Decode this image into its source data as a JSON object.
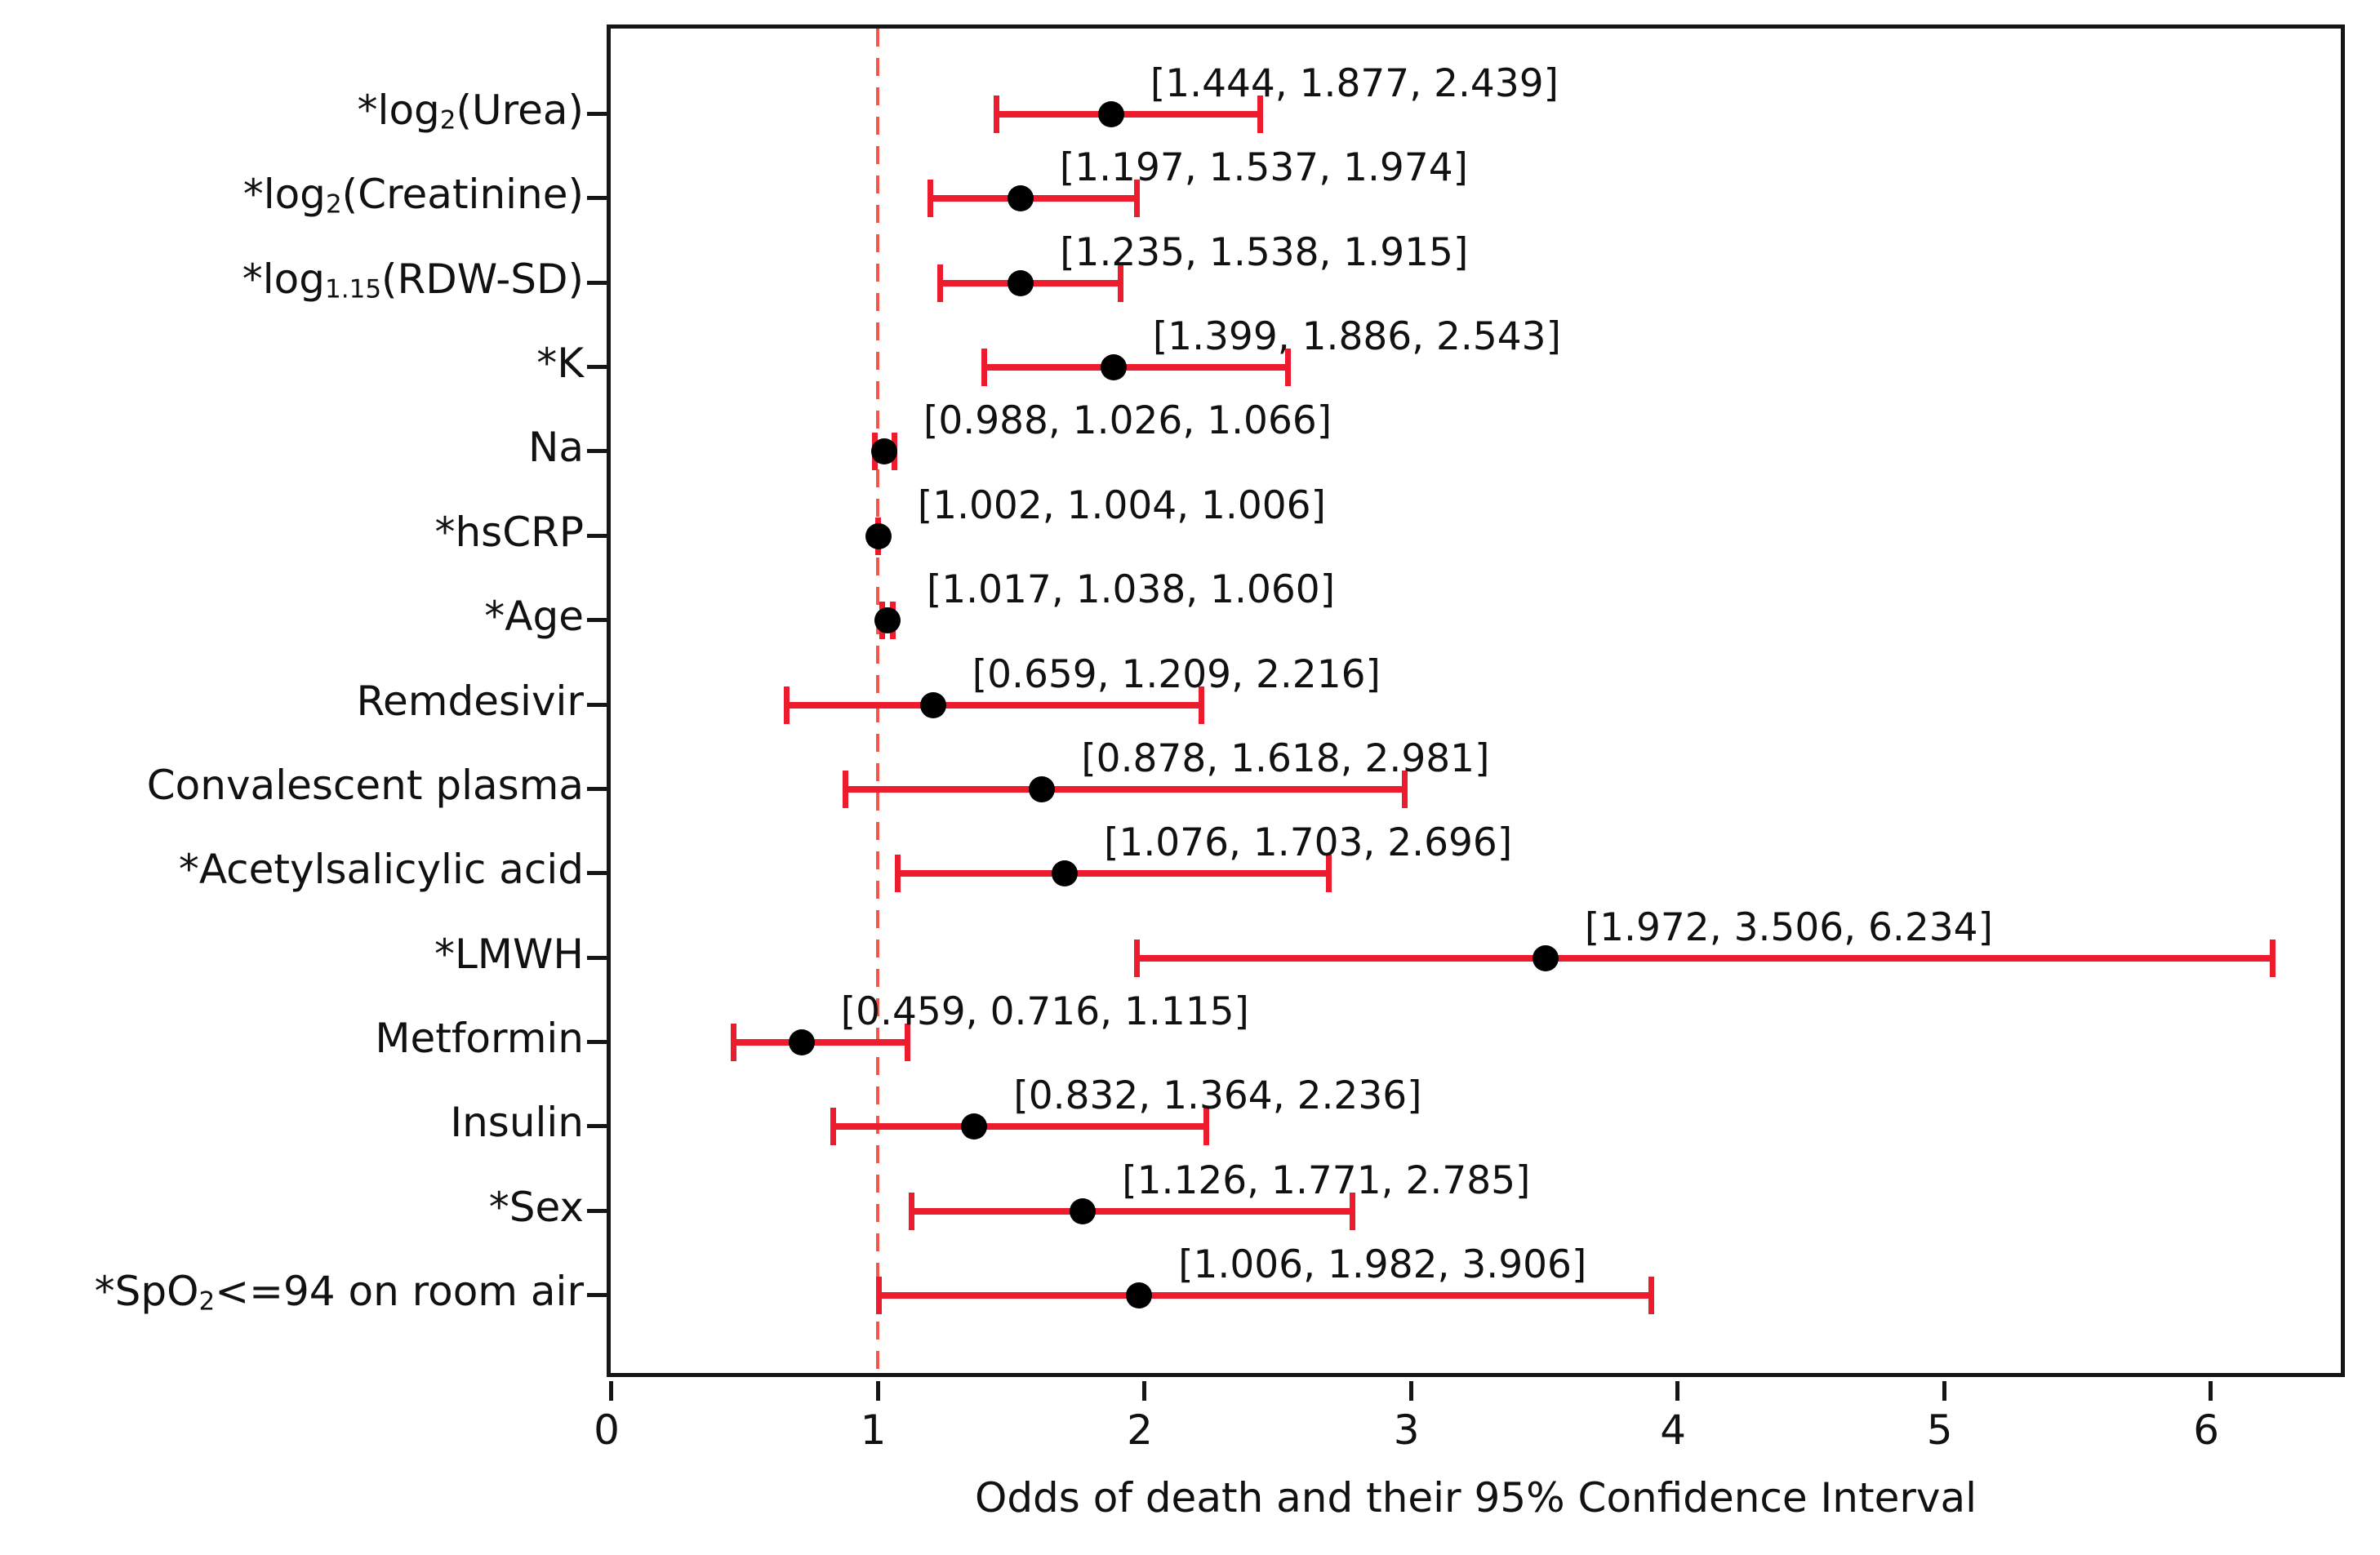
{
  "chart_data": {
    "type": "scatter",
    "subtype": "forest-plot-odds-ratios",
    "title": "",
    "xlabel": "Odds of death and their 95% Confidence Interval",
    "ylabel": "",
    "x_tick_labels": [
      "0",
      "1",
      "2",
      "3",
      "4",
      "5",
      "6"
    ],
    "x_ticks": [
      0,
      1,
      2,
      3,
      4,
      5,
      6
    ],
    "xlim": [
      0,
      6.52
    ],
    "reference_line_x": 1,
    "grid": "off",
    "legend": "none",
    "colors": {
      "error_bar": "#ec1c2e",
      "reference_line": "#f4564e",
      "marker": "#000000",
      "axis": "#161616",
      "text": "#111111"
    },
    "rows": [
      {
        "label_plain": "*log2(Urea)",
        "label_segments": [
          {
            "t": "*log"
          },
          {
            "t": "2",
            "s": 1
          },
          {
            "t": "(Urea)"
          }
        ],
        "low": 1.444,
        "mid": 1.877,
        "high": 2.439,
        "annotation": "[1.444, 1.877, 2.439]"
      },
      {
        "label_plain": "*log2(Creatinine)",
        "label_segments": [
          {
            "t": "*log"
          },
          {
            "t": "2",
            "s": 1
          },
          {
            "t": "(Creatinine)"
          }
        ],
        "low": 1.197,
        "mid": 1.537,
        "high": 1.974,
        "annotation": "[1.197, 1.537, 1.974]"
      },
      {
        "label_plain": "*log1.15(RDW-SD)",
        "label_segments": [
          {
            "t": "*log"
          },
          {
            "t": "1.15",
            "s": 1
          },
          {
            "t": "(RDW-SD)"
          }
        ],
        "low": 1.235,
        "mid": 1.538,
        "high": 1.915,
        "annotation": "[1.235, 1.538, 1.915]"
      },
      {
        "label_plain": "*K",
        "label_segments": [
          {
            "t": "*K"
          }
        ],
        "low": 1.399,
        "mid": 1.886,
        "high": 2.543,
        "annotation": "[1.399, 1.886, 2.543]"
      },
      {
        "label_plain": "Na",
        "label_segments": [
          {
            "t": "Na"
          }
        ],
        "low": 0.988,
        "mid": 1.026,
        "high": 1.066,
        "annotation": "[0.988, 1.026, 1.066]"
      },
      {
        "label_plain": "*hsCRP",
        "label_segments": [
          {
            "t": "*hsCRP"
          }
        ],
        "low": 1.002,
        "mid": 1.004,
        "high": 1.006,
        "annotation": "[1.002, 1.004, 1.006]"
      },
      {
        "label_plain": "*Age",
        "label_segments": [
          {
            "t": "*Age"
          }
        ],
        "low": 1.017,
        "mid": 1.038,
        "high": 1.06,
        "annotation": "[1.017, 1.038, 1.060]"
      },
      {
        "label_plain": "Remdesivir",
        "label_segments": [
          {
            "t": "Remdesivir"
          }
        ],
        "low": 0.659,
        "mid": 1.209,
        "high": 2.216,
        "annotation": "[0.659, 1.209, 2.216]"
      },
      {
        "label_plain": "Convalescent plasma",
        "label_segments": [
          {
            "t": "Convalescent plasma"
          }
        ],
        "low": 0.878,
        "mid": 1.618,
        "high": 2.981,
        "annotation": "[0.878, 1.618, 2.981]"
      },
      {
        "label_plain": "*Acetylsalicylic acid",
        "label_segments": [
          {
            "t": "*Acetylsalicylic acid"
          }
        ],
        "low": 1.076,
        "mid": 1.703,
        "high": 2.696,
        "annotation": "[1.076, 1.703, 2.696]"
      },
      {
        "label_plain": "*LMWH",
        "label_segments": [
          {
            "t": "*LMWH"
          }
        ],
        "low": 1.972,
        "mid": 3.506,
        "high": 6.234,
        "annotation": "[1.972, 3.506, 6.234]"
      },
      {
        "label_plain": "Metformin",
        "label_segments": [
          {
            "t": "Metformin"
          }
        ],
        "low": 0.459,
        "mid": 0.716,
        "high": 1.115,
        "annotation": "[0.459, 0.716, 1.115]"
      },
      {
        "label_plain": "Insulin",
        "label_segments": [
          {
            "t": "Insulin"
          }
        ],
        "low": 0.832,
        "mid": 1.364,
        "high": 2.236,
        "annotation": "[0.832, 1.364, 2.236]"
      },
      {
        "label_plain": "*Sex",
        "label_segments": [
          {
            "t": "*Sex"
          }
        ],
        "low": 1.126,
        "mid": 1.771,
        "high": 2.785,
        "annotation": "[1.126, 1.771, 2.785]"
      },
      {
        "label_plain": "*SpO2<=94 on room air",
        "label_segments": [
          {
            "t": "*SpO"
          },
          {
            "t": "2",
            "s": 1
          },
          {
            "t": "<=94 on room air"
          }
        ],
        "low": 1.006,
        "mid": 1.982,
        "high": 3.906,
        "annotation": "[1.006, 1.982, 3.906]"
      }
    ]
  }
}
